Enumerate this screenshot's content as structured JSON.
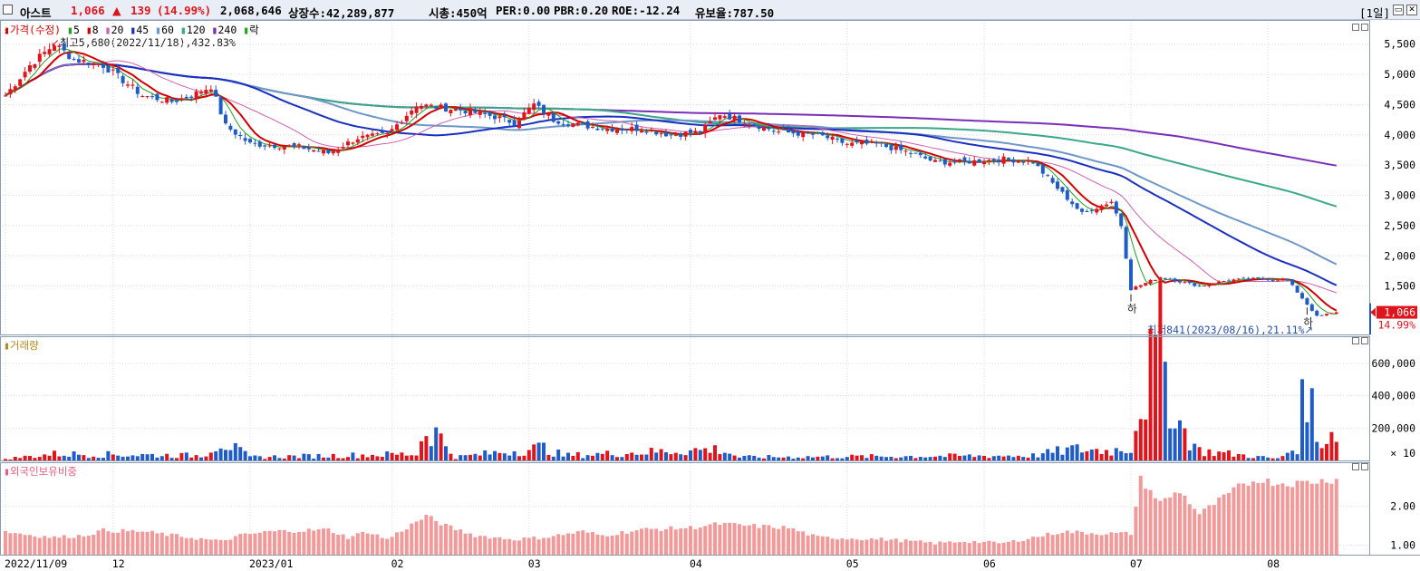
{
  "header": {
    "name": "아스트",
    "price": "1,066",
    "change_arrow": "▲",
    "change": "139",
    "change_pct": "(14.99%)",
    "volume": "2,068,646",
    "listed": "상장수:42,289,877",
    "mktcap": "시총:450억",
    "per": "PER:0.00",
    "pbr": "PBR:0.20",
    "roe": "ROE:-12.24",
    "reserve": "유보율:787.50",
    "period": "[1일]"
  },
  "price_panel": {
    "legend": [
      {
        "label": "가격(수정)",
        "color": "#d00000"
      },
      {
        "label": "5",
        "color": "#23a023"
      },
      {
        "label": "8",
        "color": "#d00000"
      },
      {
        "label": "20",
        "color": "#d05fb0"
      },
      {
        "label": "45",
        "color": "#1c30c0"
      },
      {
        "label": "60",
        "color": "#6d97c8"
      },
      {
        "label": "120",
        "color": "#3aa888"
      },
      {
        "label": "240",
        "color": "#7a2db8"
      },
      {
        "label": "락",
        "color": "#22aa22"
      }
    ],
    "high_note": "최고5,680(2022/11/18),432.83%",
    "low_note": "최저841(2023/08/16),21.11%",
    "markers": [
      "하",
      "하"
    ],
    "yticks": [
      "5,500",
      "5,000",
      "4,500",
      "4,000",
      "3,500",
      "3,000",
      "2,500",
      "2,000",
      "1,500"
    ],
    "current_price": "1,066",
    "current_pct": "14.99%"
  },
  "volume_panel": {
    "legend": "거래량",
    "yticks": [
      "600,000",
      "400,000",
      "200,000"
    ],
    "unit": "× 10"
  },
  "foreign_panel": {
    "legend": "외국인보유비중",
    "yticks": [
      "2.00",
      "1.00"
    ]
  },
  "xaxis": {
    "labels": [
      "2022/11/09",
      "12",
      "2023/01",
      "02",
      "03",
      "04",
      "05",
      "06",
      "07",
      "08"
    ]
  },
  "colors": {
    "up": "#e0141c",
    "down": "#1f5cc8",
    "grid": "#d4dbe6",
    "bar_pink": "#f29a9a"
  },
  "chart_data": {
    "type": "candlestick",
    "period": "1일",
    "x_range": [
      "2022/11/09",
      "2023/08/18"
    ],
    "price_ylim": [
      850,
      5750
    ],
    "moving_averages": [
      "5",
      "8",
      "20",
      "45",
      "60",
      "120",
      "240"
    ],
    "waypoints_price": [
      [
        0,
        4650
      ],
      [
        5,
        5150
      ],
      [
        10,
        5500
      ],
      [
        14,
        5250
      ],
      [
        20,
        5150
      ],
      [
        28,
        4650
      ],
      [
        34,
        4550
      ],
      [
        38,
        4650
      ],
      [
        42,
        4800
      ],
      [
        45,
        4150
      ],
      [
        50,
        3850
      ],
      [
        60,
        3800
      ],
      [
        66,
        3700
      ],
      [
        72,
        3950
      ],
      [
        78,
        4000
      ],
      [
        84,
        4500
      ],
      [
        94,
        4400
      ],
      [
        100,
        4300
      ],
      [
        104,
        4200
      ],
      [
        108,
        4500
      ],
      [
        112,
        4250
      ],
      [
        118,
        4150
      ],
      [
        124,
        4100
      ],
      [
        130,
        4100
      ],
      [
        136,
        4000
      ],
      [
        142,
        4050
      ],
      [
        146,
        4350
      ],
      [
        150,
        4250
      ],
      [
        158,
        4050
      ],
      [
        166,
        4000
      ],
      [
        172,
        3850
      ],
      [
        178,
        3850
      ],
      [
        185,
        3700
      ],
      [
        190,
        3550
      ],
      [
        196,
        3550
      ],
      [
        204,
        3600
      ],
      [
        210,
        3550
      ],
      [
        214,
        3200
      ],
      [
        220,
        2700
      ],
      [
        226,
        2900
      ],
      [
        228,
        2500
      ],
      [
        230,
        1450
      ],
      [
        236,
        1650
      ],
      [
        244,
        1500
      ],
      [
        250,
        1600
      ],
      [
        256,
        1620
      ],
      [
        262,
        1600
      ],
      [
        266,
        1200
      ],
      [
        268,
        1000
      ],
      [
        272,
        1066
      ]
    ],
    "waypoints_volume": [
      [
        0,
        10000
      ],
      [
        10,
        40000
      ],
      [
        40,
        30000
      ],
      [
        44,
        120000
      ],
      [
        50,
        20000
      ],
      [
        84,
        40000
      ],
      [
        86,
        200000
      ],
      [
        88,
        170000
      ],
      [
        92,
        20000
      ],
      [
        110,
        80000
      ],
      [
        114,
        30000
      ],
      [
        146,
        70000
      ],
      [
        150,
        20000
      ],
      [
        210,
        30000
      ],
      [
        218,
        70000
      ],
      [
        226,
        60000
      ],
      [
        230,
        80000
      ],
      [
        232,
        380000
      ],
      [
        236,
        700000
      ],
      [
        240,
        220000
      ],
      [
        244,
        60000
      ],
      [
        260,
        10000
      ],
      [
        264,
        90000
      ],
      [
        266,
        540000
      ],
      [
        268,
        110000
      ],
      [
        272,
        200000
      ]
    ],
    "waypoints_foreign": [
      [
        0,
        1.35
      ],
      [
        6,
        1.25
      ],
      [
        10,
        1.2
      ],
      [
        16,
        1.25
      ],
      [
        20,
        1.38
      ],
      [
        28,
        1.35
      ],
      [
        44,
        1.1
      ],
      [
        48,
        1.25
      ],
      [
        54,
        1.35
      ],
      [
        66,
        1.4
      ],
      [
        70,
        1.2
      ],
      [
        74,
        1.35
      ],
      [
        78,
        1.15
      ],
      [
        86,
        1.75
      ],
      [
        90,
        1.5
      ],
      [
        96,
        1.25
      ],
      [
        104,
        1.15
      ],
      [
        110,
        1.2
      ],
      [
        118,
        1.35
      ],
      [
        122,
        1.25
      ],
      [
        130,
        1.4
      ],
      [
        140,
        1.45
      ],
      [
        146,
        1.55
      ],
      [
        152,
        1.5
      ],
      [
        160,
        1.45
      ],
      [
        166,
        1.2
      ],
      [
        180,
        1.15
      ],
      [
        190,
        1.05
      ],
      [
        196,
        1.1
      ],
      [
        204,
        1.05
      ],
      [
        210,
        1.2
      ],
      [
        216,
        1.35
      ],
      [
        224,
        1.3
      ],
      [
        230,
        1.3
      ],
      [
        232,
        2.7
      ],
      [
        236,
        2.1
      ],
      [
        240,
        2.4
      ],
      [
        244,
        1.8
      ],
      [
        252,
        2.5
      ],
      [
        256,
        2.7
      ],
      [
        260,
        2.6
      ],
      [
        264,
        2.6
      ],
      [
        272,
        2.7
      ]
    ]
  }
}
